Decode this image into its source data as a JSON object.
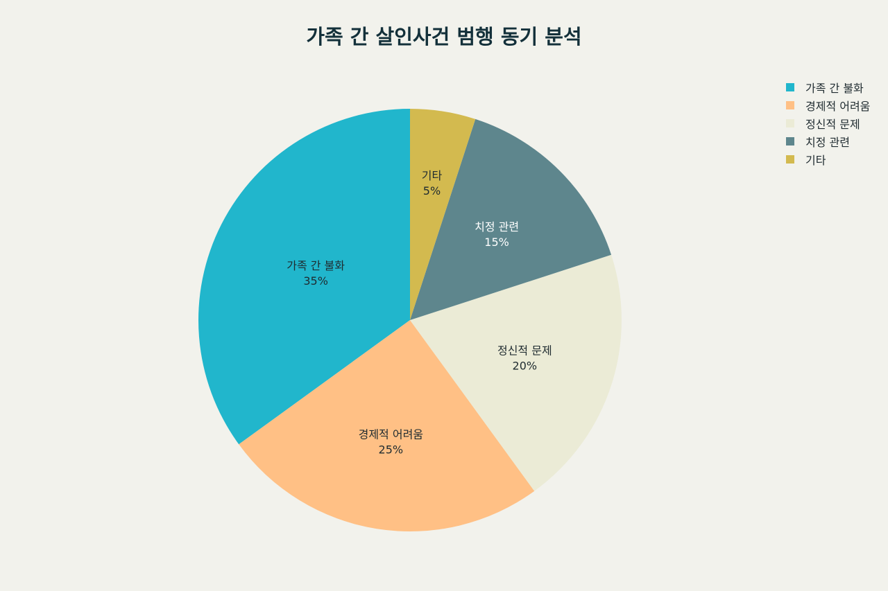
{
  "chart_data": {
    "type": "pie",
    "title": "가족 간 살인사건 범행 동기 분석",
    "categories": [
      "가족 간 불화",
      "경제적 어려움",
      "정신적 문제",
      "치정 관련",
      "기타"
    ],
    "values": [
      35,
      25,
      20,
      15,
      5
    ],
    "value_labels": [
      "35%",
      "25%",
      "20%",
      "15%",
      "5%"
    ],
    "colors": [
      "#21b6cc",
      "#ffc085",
      "#ebebd6",
      "#5e868d",
      "#d3ba4f"
    ],
    "label_colors": [
      "#1f2b30",
      "#1f2b30",
      "#1f2b30",
      "#ffffff",
      "#1f2b30"
    ],
    "start_angle": "12 o'clock",
    "direction": "counterclockwise",
    "legend_position": "top-right"
  }
}
